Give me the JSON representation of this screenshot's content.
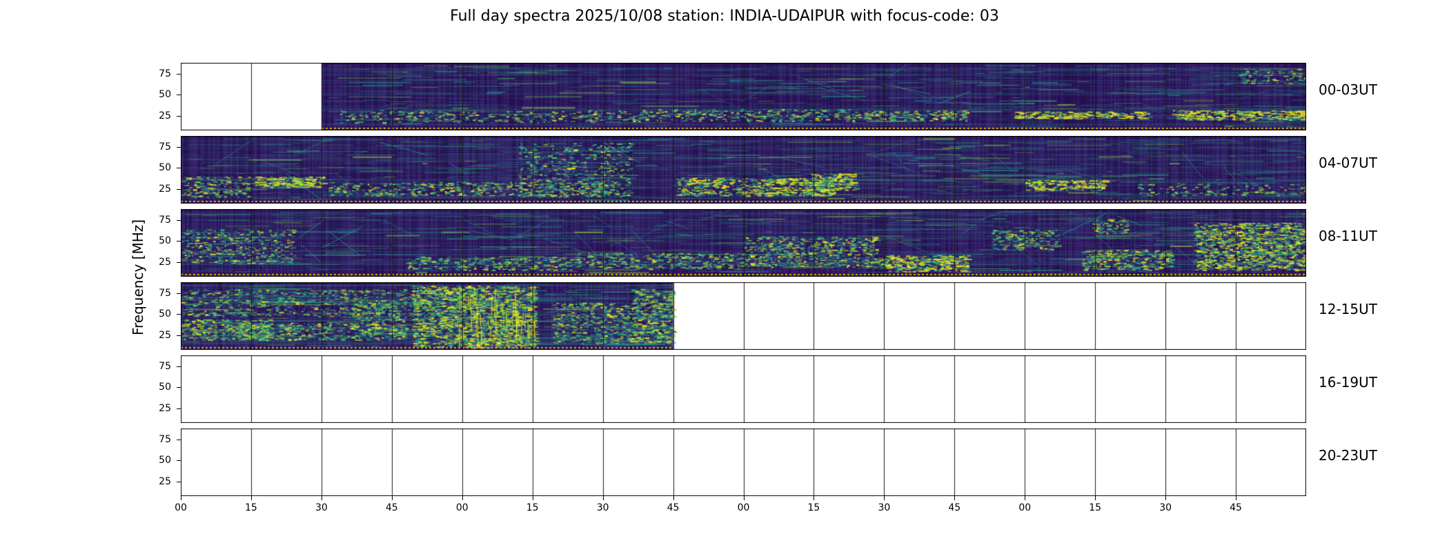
{
  "title": "Full day spectra 2025/10/08 station: INDIA-UDAIPUR with focus-code: 03",
  "chart_data": {
    "type": "heatmap",
    "title": "Full day spectra 2025/10/08 station: INDIA-UDAIPUR with focus-code: 03",
    "ylabel": "Frequency [MHz]",
    "colormap": "viridis",
    "y_ticks": [
      "75",
      "50",
      "25"
    ],
    "x_ticks": [
      "00",
      "15",
      "30",
      "45",
      "00",
      "15",
      "30",
      "45",
      "00",
      "15",
      "30",
      "45",
      "00",
      "15",
      "30",
      "45"
    ],
    "segments_per_row": 16,
    "minutes_per_segment": 15,
    "rows": [
      {
        "label": "00-03UT",
        "seg_start": 2,
        "seg_end": 16,
        "intensity": 0.45,
        "diag": 0.25,
        "coverage_note": "no data 00:00-00:30, spectra 00:30-03:59",
        "highlights": [
          {
            "x": [
              0.14,
              0.4
            ],
            "y": [
              0.7,
              0.88
            ],
            "s": 0.35
          },
          {
            "x": [
              0.4,
              0.6
            ],
            "y": [
              0.68,
              0.86
            ],
            "s": 0.5
          },
          {
            "x": [
              0.6,
              0.7
            ],
            "y": [
              0.7,
              0.85
            ],
            "s": 0.7
          },
          {
            "x": [
              0.74,
              0.86
            ],
            "y": [
              0.72,
              0.82
            ],
            "s": 0.95
          },
          {
            "x": [
              0.88,
              1.0
            ],
            "y": [
              0.7,
              0.84
            ],
            "s": 0.9
          },
          {
            "x": [
              0.94,
              1.0
            ],
            "y": [
              0.08,
              0.3
            ],
            "s": 0.4
          }
        ]
      },
      {
        "label": "04-07UT",
        "seg_start": 0,
        "seg_end": 16,
        "intensity": 0.55,
        "diag": 0.5,
        "coverage_note": "full coverage 04:00-07:59",
        "highlights": [
          {
            "x": [
              0.0,
              0.06
            ],
            "y": [
              0.6,
              0.9
            ],
            "s": 0.5
          },
          {
            "x": [
              0.065,
              0.125
            ],
            "y": [
              0.6,
              0.76
            ],
            "s": 1.0
          },
          {
            "x": [
              0.13,
              0.38
            ],
            "y": [
              0.68,
              0.88
            ],
            "s": 0.55
          },
          {
            "x": [
              0.3,
              0.4
            ],
            "y": [
              0.1,
              0.9
            ],
            "s": 0.3
          },
          {
            "x": [
              0.44,
              0.58
            ],
            "y": [
              0.62,
              0.88
            ],
            "s": 0.85
          },
          {
            "x": [
              0.56,
              0.6
            ],
            "y": [
              0.55,
              0.8
            ],
            "s": 0.9
          },
          {
            "x": [
              0.75,
              0.82
            ],
            "y": [
              0.65,
              0.8
            ],
            "s": 0.95
          },
          {
            "x": [
              0.85,
              1.0
            ],
            "y": [
              0.7,
              0.88
            ],
            "s": 0.3
          }
        ]
      },
      {
        "label": "08-11UT",
        "seg_start": 0,
        "seg_end": 16,
        "intensity": 0.5,
        "diag": 0.7,
        "coverage_note": "full coverage 08:00-11:59",
        "highlights": [
          {
            "x": [
              0.0,
              0.1
            ],
            "y": [
              0.3,
              0.8
            ],
            "s": 0.45
          },
          {
            "x": [
              0.2,
              0.35
            ],
            "y": [
              0.7,
              0.9
            ],
            "s": 0.5
          },
          {
            "x": [
              0.35,
              0.5
            ],
            "y": [
              0.65,
              0.88
            ],
            "s": 0.55
          },
          {
            "x": [
              0.5,
              0.62
            ],
            "y": [
              0.4,
              0.85
            ],
            "s": 0.6
          },
          {
            "x": [
              0.62,
              0.7
            ],
            "y": [
              0.68,
              0.92
            ],
            "s": 1.0
          },
          {
            "x": [
              0.72,
              0.78
            ],
            "y": [
              0.3,
              0.6
            ],
            "s": 0.5
          },
          {
            "x": [
              0.8,
              0.88
            ],
            "y": [
              0.6,
              0.9
            ],
            "s": 0.75
          },
          {
            "x": [
              0.81,
              0.84
            ],
            "y": [
              0.15,
              0.35
            ],
            "s": 0.7
          },
          {
            "x": [
              0.9,
              1.0
            ],
            "y": [
              0.2,
              0.9
            ],
            "s": 0.9
          }
        ]
      },
      {
        "label": "12-15UT",
        "seg_start": 0,
        "seg_end": 7,
        "intensity": 0.8,
        "diag": 0.5,
        "coverage_note": "spectra 12:00-13:45, no data afterwards; strong burst ~13:00-13:15",
        "highlights": [
          {
            "x": [
              0.0,
              0.08
            ],
            "y": [
              0.55,
              0.85
            ],
            "s": 0.8
          },
          {
            "x": [
              0.05,
              0.2
            ],
            "y": [
              0.6,
              0.85
            ],
            "s": 0.6
          },
          {
            "x": [
              0.0,
              0.25
            ],
            "y": [
              0.1,
              0.5
            ],
            "s": 0.35
          },
          {
            "x": [
              0.15,
              0.2
            ],
            "y": [
              0.3,
              0.75
            ],
            "s": 0.5
          },
          {
            "x": [
              0.205,
              0.245
            ],
            "y": [
              0.05,
              0.95
            ],
            "s": 0.85
          },
          {
            "x": [
              0.245,
              0.315
            ],
            "y": [
              0.05,
              0.97
            ],
            "s": 1.0
          },
          {
            "x": [
              0.33,
              0.44
            ],
            "y": [
              0.3,
              0.9
            ],
            "s": 0.55
          },
          {
            "x": [
              0.4,
              0.44
            ],
            "y": [
              0.1,
              0.9
            ],
            "s": 0.5
          }
        ]
      },
      {
        "label": "16-19UT",
        "seg_start": 0,
        "seg_end": 0,
        "intensity": 0,
        "diag": 0,
        "coverage_note": "no data",
        "highlights": []
      },
      {
        "label": "20-23UT",
        "seg_start": 0,
        "seg_end": 0,
        "intensity": 0,
        "diag": 0,
        "coverage_note": "no data",
        "highlights": []
      }
    ]
  }
}
